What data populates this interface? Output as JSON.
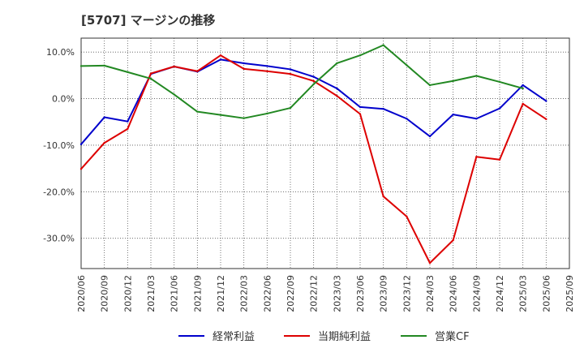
{
  "chart_data": {
    "type": "line",
    "title": "[5707]  マージンの推移",
    "categories": [
      "2020/06",
      "2020/09",
      "2020/12",
      "2021/03",
      "2021/06",
      "2021/09",
      "2021/12",
      "2022/03",
      "2022/06",
      "2022/09",
      "2022/12",
      "2023/03",
      "2023/06",
      "2023/09",
      "2023/12",
      "2024/03",
      "2024/06",
      "2024/09",
      "2024/12",
      "2025/03",
      "2025/06",
      "2025/09"
    ],
    "ylim": [
      -36.5,
      13
    ],
    "yticks": [
      10,
      0,
      -10,
      -20,
      -30
    ],
    "ytick_labels": [
      "10.0%",
      "0.0%",
      "-10.0%",
      "-20.0%",
      "-30.0%"
    ],
    "grid": true,
    "legend_position": "bottom",
    "series": [
      {
        "name": "経常利益",
        "color": "#0000cc",
        "values": [
          -9.8,
          -4.0,
          -4.9,
          5.3,
          6.9,
          5.8,
          8.4,
          7.6,
          7.0,
          6.3,
          4.7,
          2.2,
          -1.8,
          -2.2,
          -4.3,
          -8.1,
          -3.4,
          -4.3,
          -2.1,
          2.9,
          -0.5,
          null
        ]
      },
      {
        "name": "当期純利益",
        "color": "#dd0000",
        "values": [
          -15.1,
          -9.5,
          -6.5,
          5.4,
          6.9,
          5.9,
          9.3,
          6.4,
          5.9,
          5.3,
          3.8,
          0.6,
          -3.3,
          -21.0,
          -25.3,
          -35.3,
          -30.4,
          -12.5,
          -13.1,
          -1.1,
          -4.4,
          null
        ]
      },
      {
        "name": "営業CF",
        "color": "#228822",
        "values": [
          7.0,
          7.1,
          5.7,
          4.3,
          0.9,
          -2.8,
          -3.5,
          -4.2,
          -3.2,
          -2.0,
          3.1,
          7.6,
          9.3,
          11.5,
          7.2,
          2.9,
          3.8,
          4.9,
          3.6,
          2.2,
          null,
          null
        ]
      }
    ]
  }
}
